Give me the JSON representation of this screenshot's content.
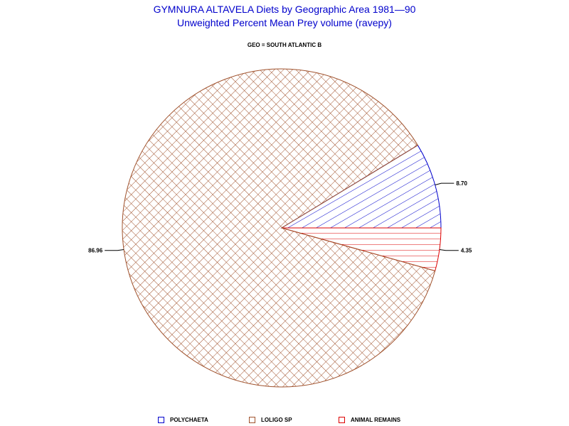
{
  "chart_data": {
    "type": "pie",
    "title": "GYMNURA ALTAVELA Diets by Geographic Area 1981—90",
    "subtitle": "Unweighted Percent Mean Prey volume (ravepy)",
    "group_label": "GEO = SOUTH ATLANTIC  B",
    "slices": [
      {
        "name": "POLYCHAETA",
        "value": 8.7,
        "label": "8.70",
        "color": "#0000cc",
        "pattern": "diagonal-hatch"
      },
      {
        "name": "ANIMAL REMAINS",
        "value": 4.35,
        "label": "4.35",
        "color": "#dd0000",
        "pattern": "horizontal-hatch"
      },
      {
        "name": "LOLIGO SP",
        "value": 86.96,
        "label": "86.96",
        "color": "#a0522d",
        "pattern": "crosshatch"
      }
    ],
    "legend": {
      "position": "bottom",
      "items": [
        {
          "name": "POLYCHAETA",
          "color": "#0000cc"
        },
        {
          "name": "LOLIGO SP",
          "color": "#a0522d"
        },
        {
          "name": "ANIMAL REMAINS",
          "color": "#dd0000"
        }
      ]
    }
  }
}
